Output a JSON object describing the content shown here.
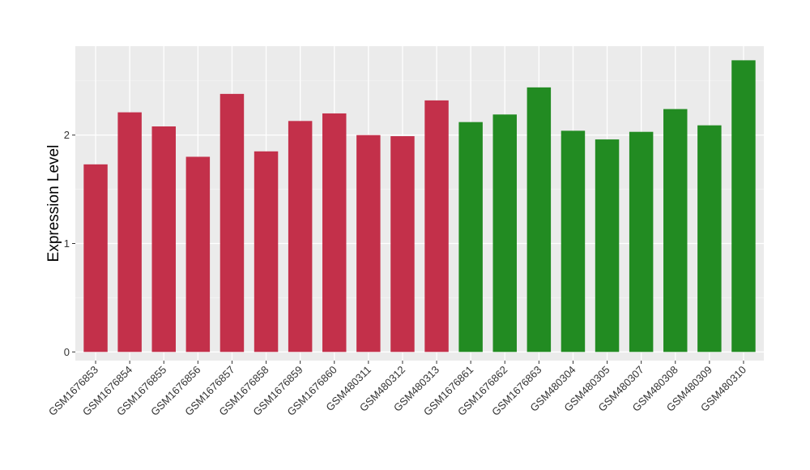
{
  "chart_data": {
    "type": "bar",
    "title": "",
    "xlabel": "",
    "ylabel": "Expression Level",
    "ylim": [
      -0.08,
      2.82
    ],
    "yticks": [
      0,
      1,
      2
    ],
    "grid": true,
    "legend": "none",
    "colors": {
      "panel_background": "#EBEBEB",
      "grid_major": "#FFFFFF",
      "grid_minor": "#F5F5F5",
      "tick": "#333333"
    },
    "categories": [
      "GSM1676853",
      "GSM1676854",
      "GSM1676855",
      "GSM1676856",
      "GSM1676857",
      "GSM1676858",
      "GSM1676859",
      "GSM1676860",
      "GSM480311",
      "GSM480312",
      "GSM480313",
      "GSM1676861",
      "GSM1676862",
      "GSM1676863",
      "GSM480304",
      "GSM480305",
      "GSM480307",
      "GSM480308",
      "GSM480309",
      "GSM480310"
    ],
    "values": [
      1.73,
      2.21,
      2.08,
      1.8,
      2.38,
      1.85,
      2.13,
      2.2,
      2.0,
      1.99,
      2.32,
      2.12,
      2.19,
      2.44,
      2.04,
      1.96,
      2.03,
      2.24,
      2.09,
      2.69
    ],
    "bar_colors": [
      "#C3304A",
      "#C3304A",
      "#C3304A",
      "#C3304A",
      "#C3304A",
      "#C3304A",
      "#C3304A",
      "#C3304A",
      "#C3304A",
      "#C3304A",
      "#C3304A",
      "#228B22",
      "#228B22",
      "#228B22",
      "#228B22",
      "#228B22",
      "#228B22",
      "#228B22",
      "#228B22",
      "#228B22"
    ]
  }
}
